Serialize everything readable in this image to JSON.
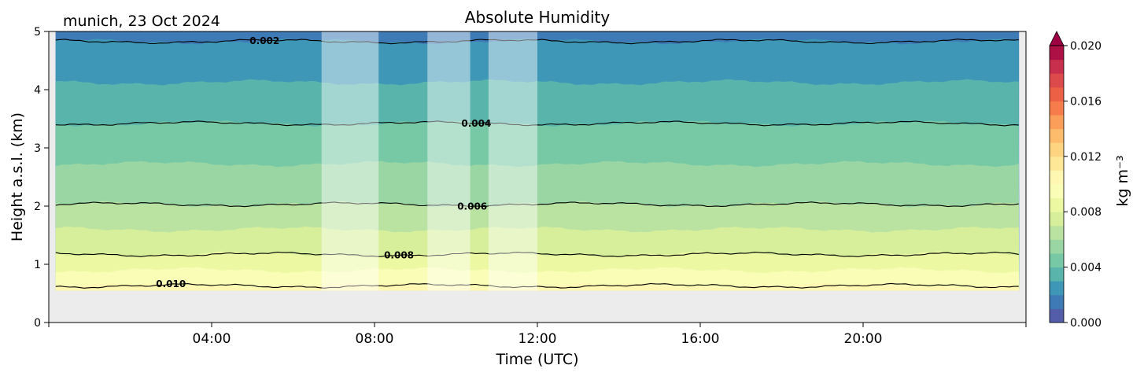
{
  "chart_data": {
    "type": "heatmap",
    "title": "Absolute Humidity",
    "location_label": "munich, 23 Oct 2024",
    "xlabel": "Time (UTC)",
    "ylabel": "Height a.s.l. (km)",
    "xlim_hours": [
      0,
      24
    ],
    "ylim_km": [
      0,
      5
    ],
    "x_ticks": [
      {
        "hour": 4,
        "label": "04:00"
      },
      {
        "hour": 8,
        "label": "08:00"
      },
      {
        "hour": 12,
        "label": "12:00"
      },
      {
        "hour": 16,
        "label": "16:00"
      },
      {
        "hour": 20,
        "label": "20:00"
      }
    ],
    "y_ticks": [
      {
        "value": 0,
        "label": "0"
      },
      {
        "value": 1,
        "label": "1"
      },
      {
        "value": 2,
        "label": "2"
      },
      {
        "value": 3,
        "label": "3"
      },
      {
        "value": 4,
        "label": "4"
      },
      {
        "value": 5,
        "label": "5"
      }
    ],
    "data_extent": {
      "t_start_hour": 0.17,
      "t_end_hour": 23.83,
      "z_bottom_km": 0.55,
      "z_top_km": 5
    },
    "ground_color": "#ececec",
    "missing_data_periods": [
      {
        "start_hour": 6.7,
        "end_hour": 8.1
      },
      {
        "start_hour": 9.3,
        "end_hour": 10.35
      },
      {
        "start_hour": 10.8,
        "end_hour": 12.0
      }
    ],
    "contours": [
      {
        "value": 0.002,
        "label": "0.002",
        "base_height_km": 4.83,
        "label_hour": 5.3
      },
      {
        "value": 0.004,
        "label": "0.004",
        "base_height_km": 3.42,
        "label_hour": 10.5
      },
      {
        "value": 0.006,
        "label": "0.006",
        "base_height_km": 2.03,
        "label_hour": 10.4
      },
      {
        "value": 0.008,
        "label": "0.008",
        "base_height_km": 1.17,
        "label_hour": 8.6
      },
      {
        "value": 0.01,
        "label": "0.010",
        "base_height_km": 0.63,
        "label_hour": 3.0
      }
    ],
    "colorbar": {
      "label": "kg m⁻³",
      "min": 0.0,
      "max": 0.02,
      "extend": "max",
      "ticks": [
        {
          "value": 0.0,
          "label": "0.000"
        },
        {
          "value": 0.004,
          "label": "0.004"
        },
        {
          "value": 0.008,
          "label": "0.008"
        },
        {
          "value": 0.012,
          "label": "0.012"
        },
        {
          "value": 0.016,
          "label": "0.016"
        },
        {
          "value": 0.02,
          "label": "0.020"
        }
      ],
      "colormap": "Spectral_r",
      "color_stops": [
        "#5e4fa2",
        "#3288bd",
        "#66c2a5",
        "#abdda4",
        "#e6f598",
        "#ffffbf",
        "#fee08b",
        "#fdae61",
        "#f46d43",
        "#d53e4f",
        "#9e0142"
      ]
    }
  }
}
